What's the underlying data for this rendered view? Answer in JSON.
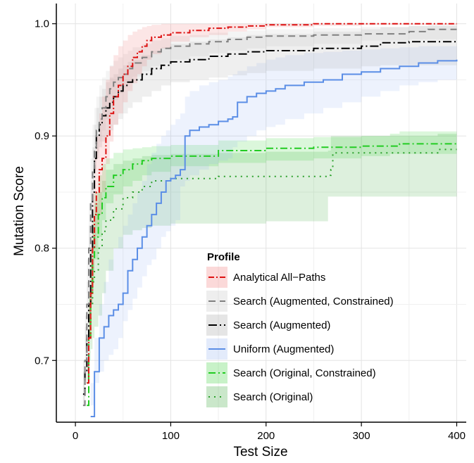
{
  "chart_data": {
    "type": "line",
    "title": "",
    "xlabel": "Test Size",
    "ylabel": "Mutation Score",
    "xlim": [
      -20,
      410
    ],
    "ylim": [
      0.645,
      1.018
    ],
    "xticks": [
      0,
      100,
      200,
      300,
      400
    ],
    "xtick_labels": [
      "0",
      "100",
      "200",
      "300",
      "400"
    ],
    "yticks": [
      0.7,
      0.8,
      0.9,
      1.0
    ],
    "ytick_labels": [
      "0.7",
      "0.8",
      "0.9",
      "1.0"
    ],
    "grid": true,
    "legend": {
      "title": "Profile",
      "placement": "bottom-center"
    },
    "series": [
      {
        "name": "Search (Original)",
        "color": "#2ca02c",
        "band_color": "#2ca02c",
        "dash": "2,6",
        "x": [
          12,
          14,
          16,
          18,
          20,
          24,
          28,
          32,
          40,
          50,
          60,
          70,
          80,
          100,
          150,
          200,
          265,
          268,
          270,
          300,
          350,
          380,
          400
        ],
        "y": [
          0.68,
          0.72,
          0.75,
          0.77,
          0.78,
          0.8,
          0.815,
          0.825,
          0.835,
          0.845,
          0.85,
          0.855,
          0.86,
          0.862,
          0.864,
          0.864,
          0.865,
          0.87,
          0.885,
          0.885,
          0.885,
          0.888,
          0.888
        ],
        "upper": [
          0.7,
          0.75,
          0.79,
          0.82,
          0.84,
          0.85,
          0.86,
          0.87,
          0.875,
          0.878,
          0.88,
          0.882,
          0.883,
          0.884,
          0.885,
          0.886,
          0.887,
          0.9,
          0.9,
          0.9,
          0.9,
          0.902,
          0.902
        ],
        "lower": [
          0.66,
          0.68,
          0.7,
          0.71,
          0.72,
          0.73,
          0.74,
          0.76,
          0.78,
          0.8,
          0.812,
          0.816,
          0.818,
          0.82,
          0.822,
          0.822,
          0.824,
          0.846,
          0.846,
          0.846,
          0.846,
          0.846,
          0.846
        ]
      },
      {
        "name": "Search (Original, Constrained)",
        "color": "#22cc22",
        "band_color": "#22cc22",
        "dash": "10,4,2,4",
        "x": [
          12,
          14,
          16,
          18,
          20,
          24,
          28,
          32,
          40,
          50,
          60,
          70,
          80,
          100,
          150,
          200,
          250,
          300,
          330,
          340,
          400
        ],
        "y": [
          0.66,
          0.72,
          0.76,
          0.79,
          0.81,
          0.83,
          0.845,
          0.855,
          0.865,
          0.87,
          0.875,
          0.878,
          0.88,
          0.882,
          0.887,
          0.889,
          0.89,
          0.891,
          0.891,
          0.893,
          0.893
        ],
        "upper": [
          0.68,
          0.76,
          0.8,
          0.83,
          0.85,
          0.865,
          0.875,
          0.88,
          0.885,
          0.888,
          0.889,
          0.89,
          0.891,
          0.892,
          0.896,
          0.898,
          0.899,
          0.9,
          0.902,
          0.904,
          0.904
        ],
        "lower": [
          0.64,
          0.68,
          0.72,
          0.75,
          0.77,
          0.79,
          0.81,
          0.825,
          0.84,
          0.848,
          0.855,
          0.86,
          0.865,
          0.868,
          0.873,
          0.876,
          0.878,
          0.88,
          0.882,
          0.884,
          0.884
        ]
      },
      {
        "name": "Uniform (Augmented)",
        "color": "#5b8ee6",
        "band_color": "#8fb0f0",
        "dash": "",
        "x": [
          16,
          20,
          25,
          30,
          35,
          40,
          45,
          50,
          55,
          60,
          65,
          70,
          75,
          80,
          85,
          90,
          95,
          100,
          105,
          110,
          115,
          120,
          130,
          140,
          150,
          160,
          165,
          170,
          180,
          190,
          200,
          210,
          220,
          240,
          260,
          280,
          300,
          320,
          340,
          360,
          380,
          400
        ],
        "y": [
          0.65,
          0.69,
          0.72,
          0.73,
          0.74,
          0.745,
          0.75,
          0.76,
          0.78,
          0.79,
          0.8,
          0.81,
          0.82,
          0.83,
          0.84,
          0.85,
          0.86,
          0.862,
          0.865,
          0.87,
          0.9,
          0.905,
          0.908,
          0.91,
          0.913,
          0.915,
          0.917,
          0.93,
          0.935,
          0.938,
          0.94,
          0.942,
          0.945,
          0.948,
          0.95,
          0.955,
          0.957,
          0.96,
          0.962,
          0.965,
          0.967,
          0.968
        ],
        "upper": [
          0.68,
          0.72,
          0.75,
          0.77,
          0.79,
          0.8,
          0.81,
          0.82,
          0.83,
          0.84,
          0.85,
          0.86,
          0.875,
          0.885,
          0.893,
          0.9,
          0.905,
          0.91,
          0.915,
          0.92,
          0.935,
          0.94,
          0.945,
          0.948,
          0.95,
          0.953,
          0.955,
          0.958,
          0.962,
          0.965,
          0.968,
          0.97,
          0.972,
          0.974,
          0.975,
          0.976,
          0.977,
          0.978,
          0.979,
          0.98,
          0.98,
          0.98
        ],
        "lower": [
          0.64,
          0.66,
          0.68,
          0.69,
          0.7,
          0.705,
          0.71,
          0.72,
          0.735,
          0.745,
          0.755,
          0.765,
          0.775,
          0.785,
          0.79,
          0.8,
          0.81,
          0.815,
          0.82,
          0.825,
          0.855,
          0.86,
          0.865,
          0.87,
          0.875,
          0.878,
          0.88,
          0.89,
          0.895,
          0.9,
          0.905,
          0.908,
          0.91,
          0.915,
          0.92,
          0.925,
          0.93,
          0.935,
          0.94,
          0.945,
          0.948,
          0.95
        ]
      },
      {
        "name": "Search (Augmented)",
        "color": "#000000",
        "band_color": "#999999",
        "dash": "12,4,2,4",
        "x": [
          8,
          10,
          12,
          14,
          16,
          18,
          20,
          22,
          25,
          28,
          32,
          36,
          40,
          45,
          50,
          55,
          60,
          70,
          80,
          90,
          100,
          120,
          140,
          160,
          180,
          200,
          250,
          300,
          320,
          350,
          400
        ],
        "y": [
          0.67,
          0.69,
          0.72,
          0.75,
          0.8,
          0.85,
          0.88,
          0.9,
          0.91,
          0.918,
          0.925,
          0.93,
          0.935,
          0.94,
          0.945,
          0.948,
          0.95,
          0.955,
          0.96,
          0.963,
          0.966,
          0.968,
          0.971,
          0.973,
          0.975,
          0.976,
          0.978,
          0.98,
          0.983,
          0.984,
          0.984
        ],
        "upper": [
          0.7,
          0.73,
          0.77,
          0.82,
          0.86,
          0.89,
          0.91,
          0.925,
          0.935,
          0.942,
          0.948,
          0.952,
          0.955,
          0.96,
          0.963,
          0.966,
          0.968,
          0.972,
          0.976,
          0.979,
          0.982,
          0.984,
          0.986,
          0.988,
          0.99,
          0.991,
          0.993,
          0.995,
          0.997,
          0.998,
          0.998
        ],
        "lower": [
          0.64,
          0.66,
          0.68,
          0.7,
          0.74,
          0.79,
          0.84,
          0.87,
          0.88,
          0.89,
          0.895,
          0.9,
          0.905,
          0.91,
          0.915,
          0.92,
          0.925,
          0.93,
          0.935,
          0.94,
          0.945,
          0.948,
          0.95,
          0.952,
          0.954,
          0.956,
          0.958,
          0.96,
          0.962,
          0.963,
          0.963
        ]
      },
      {
        "name": "Search (Augmented, Constrained)",
        "color": "#808080",
        "band_color": "#bbbbbb",
        "dash": "10,6",
        "x": [
          8,
          10,
          12,
          14,
          16,
          18,
          20,
          22,
          25,
          28,
          32,
          36,
          40,
          45,
          50,
          55,
          60,
          70,
          80,
          90,
          100,
          120,
          140,
          160,
          180,
          200,
          250,
          300,
          350,
          370,
          400
        ],
        "y": [
          0.66,
          0.7,
          0.75,
          0.8,
          0.84,
          0.87,
          0.89,
          0.905,
          0.915,
          0.925,
          0.935,
          0.942,
          0.948,
          0.952,
          0.955,
          0.96,
          0.965,
          0.97,
          0.975,
          0.978,
          0.98,
          0.982,
          0.984,
          0.986,
          0.988,
          0.989,
          0.99,
          0.991,
          0.993,
          0.995,
          0.995
        ],
        "upper": [
          0.69,
          0.74,
          0.79,
          0.84,
          0.88,
          0.91,
          0.925,
          0.935,
          0.945,
          0.952,
          0.958,
          0.963,
          0.967,
          0.97,
          0.973,
          0.976,
          0.979,
          0.982,
          0.985,
          0.987,
          0.989,
          0.99,
          0.992,
          0.993,
          0.994,
          0.995,
          0.996,
          0.997,
          0.998,
          0.999,
          0.999
        ],
        "lower": [
          0.63,
          0.66,
          0.71,
          0.76,
          0.8,
          0.83,
          0.85,
          0.87,
          0.885,
          0.895,
          0.905,
          0.915,
          0.925,
          0.932,
          0.938,
          0.943,
          0.948,
          0.953,
          0.958,
          0.962,
          0.965,
          0.968,
          0.971,
          0.974,
          0.976,
          0.978,
          0.98,
          0.982,
          0.985,
          0.986,
          0.986
        ]
      },
      {
        "name": "Analytical All-Paths",
        "color": "#dd1111",
        "band_color": "#ee6666",
        "dash": "8,3,2,3",
        "x": [
          12,
          14,
          16,
          18,
          20,
          22,
          25,
          28,
          32,
          36,
          40,
          45,
          50,
          55,
          60,
          65,
          70,
          75,
          80,
          90,
          100,
          120,
          140,
          160,
          180,
          200,
          250,
          300,
          350,
          400
        ],
        "y": [
          0.68,
          0.72,
          0.76,
          0.8,
          0.83,
          0.85,
          0.87,
          0.88,
          0.9,
          0.92,
          0.935,
          0.945,
          0.955,
          0.962,
          0.97,
          0.975,
          0.98,
          0.985,
          0.988,
          0.99,
          0.992,
          0.994,
          0.996,
          0.997,
          0.998,
          0.999,
          1.0,
          1.0,
          1.0,
          1.0
        ],
        "upper": [
          0.7,
          0.75,
          0.8,
          0.85,
          0.88,
          0.9,
          0.92,
          0.935,
          0.95,
          0.962,
          0.972,
          0.98,
          0.985,
          0.99,
          0.993,
          0.995,
          0.997,
          0.998,
          0.999,
          1.0,
          1.0,
          1.0,
          1.0,
          1.0,
          1.0,
          1.0,
          1.0,
          1.0,
          1.0,
          1.0
        ],
        "lower": [
          0.66,
          0.69,
          0.72,
          0.75,
          0.78,
          0.8,
          0.82,
          0.83,
          0.85,
          0.875,
          0.895,
          0.91,
          0.92,
          0.93,
          0.94,
          0.947,
          0.955,
          0.962,
          0.968,
          0.973,
          0.978,
          0.984,
          0.988,
          0.99,
          0.993,
          0.995,
          0.997,
          0.998,
          0.999,
          0.999
        ]
      }
    ],
    "legend_entries": [
      {
        "label": "Analytical All−Paths",
        "color": "#dd1111",
        "band_color": "#ee6666",
        "dash": "8,3,2,3"
      },
      {
        "label": "Search (Augmented, Constrained)",
        "color": "#808080",
        "band_color": "#bbbbbb",
        "dash": "10,6"
      },
      {
        "label": "Search (Augmented)",
        "color": "#000000",
        "band_color": "#999999",
        "dash": "12,4,2,4"
      },
      {
        "label": "Uniform (Augmented)",
        "color": "#5b8ee6",
        "band_color": "#8fb0f0",
        "dash": ""
      },
      {
        "label": "Search (Original, Constrained)",
        "color": "#22cc22",
        "band_color": "#22cc22",
        "dash": "10,4,2,4"
      },
      {
        "label": "Search (Original)",
        "color": "#2ca02c",
        "band_color": "#2ca02c",
        "dash": "2,6"
      }
    ]
  }
}
